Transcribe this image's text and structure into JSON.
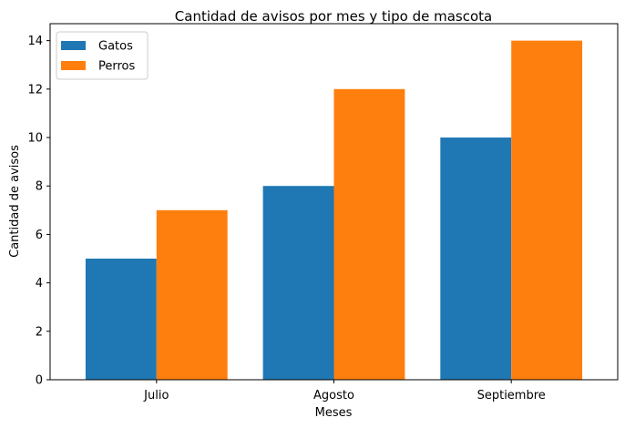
{
  "chart_data": {
    "type": "bar",
    "title": "Cantidad de avisos por mes y tipo de mascota",
    "xlabel": "Meses",
    "ylabel": "Cantidad de avisos",
    "categories": [
      "Julio",
      "Agosto",
      "Septiembre"
    ],
    "series": [
      {
        "name": "Gatos",
        "values": [
          5,
          8,
          10
        ],
        "color": "#1f77b4"
      },
      {
        "name": "Perros",
        "values": [
          7,
          12,
          14
        ],
        "color": "#ff7f0e"
      }
    ],
    "ylim": [
      0,
      14.7
    ],
    "yticks": [
      0,
      2,
      4,
      6,
      8,
      10,
      12,
      14
    ],
    "legend_position": "top-left",
    "grid": false
  }
}
